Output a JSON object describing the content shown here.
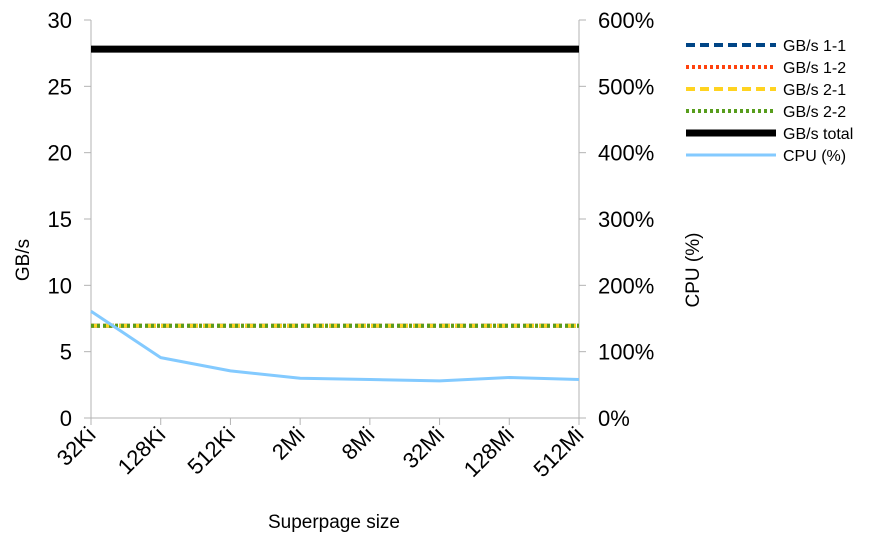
{
  "chart_data": {
    "type": "line",
    "title": "",
    "xlabel": "Superpage size",
    "ylabel": "GB/s",
    "y2label": "CPU (%)",
    "categories": [
      "32Ki",
      "128Ki",
      "512Ki",
      "2Mi",
      "8Mi",
      "32Mi",
      "128Mi",
      "512Mi"
    ],
    "ylim": [
      0,
      30
    ],
    "yticks": [
      0,
      5,
      10,
      15,
      20,
      25,
      30
    ],
    "ytick_labels": [
      "0",
      "5",
      "10",
      "15",
      "20",
      "25",
      "30"
    ],
    "y2lim": [
      0,
      600
    ],
    "y2ticks": [
      0,
      100,
      200,
      300,
      400,
      500,
      600
    ],
    "y2tick_labels": [
      "0%",
      "100%",
      "200%",
      "300%",
      "400%",
      "500%",
      "600%"
    ],
    "grid": false,
    "legend_position": "top-right",
    "series": [
      {
        "name": "GB/s 1-1",
        "axis": "left",
        "color": "#004586",
        "dash": "dash",
        "width": 4,
        "values": [
          6.95,
          6.95,
          6.95,
          6.95,
          6.95,
          6.95,
          6.95,
          6.95
        ]
      },
      {
        "name": "GB/s 1-2",
        "axis": "left",
        "color": "#ff420e",
        "dash": "dot",
        "width": 4,
        "values": [
          6.95,
          6.95,
          6.95,
          6.95,
          6.95,
          6.95,
          6.95,
          6.95
        ]
      },
      {
        "name": "GB/s 2-1",
        "axis": "left",
        "color": "#ffd320",
        "dash": "dash",
        "width": 4,
        "values": [
          6.95,
          6.95,
          6.95,
          6.95,
          6.95,
          6.95,
          6.95,
          6.95
        ]
      },
      {
        "name": "GB/s 2-2",
        "axis": "left",
        "color": "#579d1c",
        "dash": "dot",
        "width": 4,
        "values": [
          6.95,
          6.95,
          6.95,
          6.95,
          6.95,
          6.95,
          6.95,
          6.95
        ]
      },
      {
        "name": "GB/s total",
        "axis": "left",
        "color": "#000000",
        "dash": "solid",
        "width": 7,
        "values": [
          27.8,
          27.8,
          27.8,
          27.8,
          27.8,
          27.8,
          27.8,
          27.8
        ]
      },
      {
        "name": "CPU (%)",
        "axis": "right",
        "color": "#83caff",
        "dash": "solid",
        "width": 3,
        "values": [
          161,
          91,
          71,
          60,
          58,
          56,
          61,
          58
        ]
      }
    ]
  }
}
